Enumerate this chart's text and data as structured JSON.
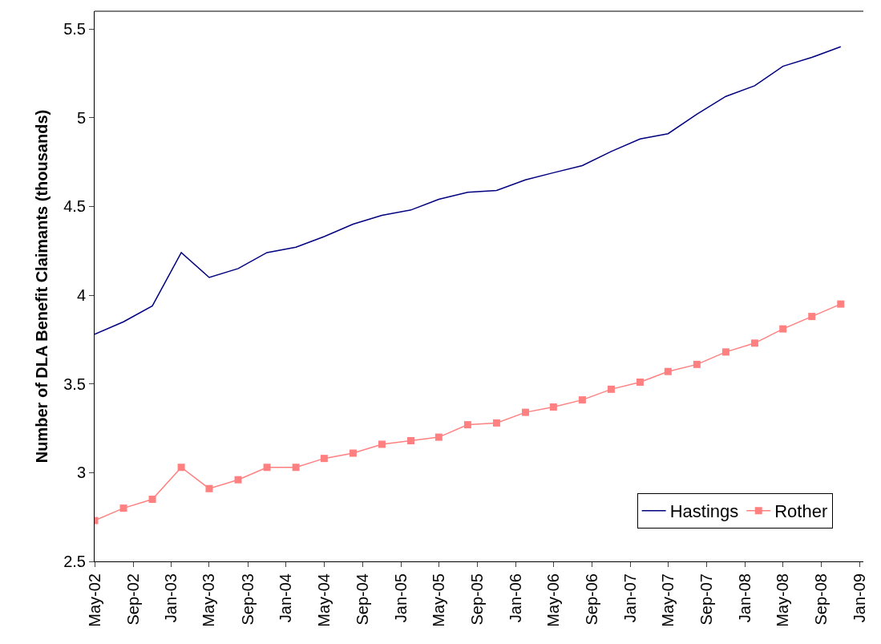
{
  "chart_data": {
    "type": "line",
    "ylabel": "Number of DLA Benefit Claimants (thousands)",
    "x": [
      "2002-05",
      "2002-08",
      "2002-11",
      "2003-02",
      "2003-05",
      "2003-08",
      "2003-11",
      "2004-02",
      "2004-05",
      "2004-08",
      "2004-11",
      "2005-02",
      "2005-05",
      "2005-08",
      "2005-11",
      "2006-02",
      "2006-05",
      "2006-08",
      "2006-11",
      "2007-02",
      "2007-05",
      "2007-08",
      "2007-11",
      "2008-02",
      "2008-05",
      "2008-08",
      "2008-11"
    ],
    "series": [
      {
        "name": "Hastings",
        "color": "#000080",
        "marker": "none",
        "values": [
          3.78,
          3.85,
          3.94,
          4.24,
          4.1,
          4.15,
          4.24,
          4.27,
          4.33,
          4.4,
          4.45,
          4.48,
          4.54,
          4.58,
          4.59,
          4.65,
          4.69,
          4.73,
          4.81,
          4.88,
          4.91,
          5.02,
          5.12,
          5.18,
          5.29,
          5.34,
          5.4
        ]
      },
      {
        "name": "Rother",
        "color": "#ff8080",
        "marker": "square",
        "values": [
          2.73,
          2.8,
          2.85,
          3.03,
          2.91,
          2.96,
          3.03,
          3.03,
          3.08,
          3.11,
          3.16,
          3.18,
          3.2,
          3.27,
          3.28,
          3.34,
          3.37,
          3.41,
          3.47,
          3.51,
          3.57,
          3.61,
          3.68,
          3.73,
          3.81,
          3.88,
          3.95
        ]
      }
    ],
    "xlim": [
      "2002-05",
      "2009-01-12"
    ],
    "xticks": [
      {
        "value": "2002-05",
        "label": "May-02"
      },
      {
        "value": "2002-09",
        "label": "Sep-02"
      },
      {
        "value": "2003-01",
        "label": "Jan-03"
      },
      {
        "value": "2003-05",
        "label": "May-03"
      },
      {
        "value": "2003-09",
        "label": "Sep-03"
      },
      {
        "value": "2004-01",
        "label": "Jan-04"
      },
      {
        "value": "2004-05",
        "label": "May-04"
      },
      {
        "value": "2004-09",
        "label": "Sep-04"
      },
      {
        "value": "2005-01",
        "label": "Jan-05"
      },
      {
        "value": "2005-05",
        "label": "May-05"
      },
      {
        "value": "2005-09",
        "label": "Sep-05"
      },
      {
        "value": "2006-01",
        "label": "Jan-06"
      },
      {
        "value": "2006-05",
        "label": "May-06"
      },
      {
        "value": "2006-09",
        "label": "Sep-06"
      },
      {
        "value": "2007-01",
        "label": "Jan-07"
      },
      {
        "value": "2007-05",
        "label": "May-07"
      },
      {
        "value": "2007-09",
        "label": "Sep-07"
      },
      {
        "value": "2008-01",
        "label": "Jan-08"
      },
      {
        "value": "2008-05",
        "label": "May-08"
      },
      {
        "value": "2008-09",
        "label": "Sep-08"
      },
      {
        "value": "2009-01",
        "label": "Jan-09"
      }
    ],
    "ylim": [
      2.5,
      5.6
    ],
    "yticks": [
      {
        "value": 2.5,
        "label": "2.5"
      },
      {
        "value": 3,
        "label": "3"
      },
      {
        "value": 3.5,
        "label": "3.5"
      },
      {
        "value": 4,
        "label": "4"
      },
      {
        "value": 4.5,
        "label": "4.5"
      },
      {
        "value": 5,
        "label": "5"
      },
      {
        "value": 5.5,
        "label": "5.5"
      }
    ],
    "legend": "bottom right"
  }
}
